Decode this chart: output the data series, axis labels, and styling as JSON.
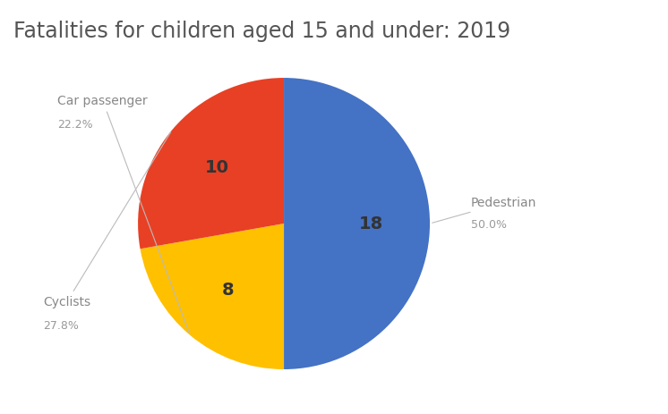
{
  "title": "Fatalities for children aged 15 and under: 2019",
  "labels": [
    "Pedestrian",
    "Car passenger",
    "Cyclists"
  ],
  "values": [
    18,
    8,
    10
  ],
  "percentages": [
    "50.0%",
    "22.2%",
    "27.8%"
  ],
  "colors": [
    "#4472C4",
    "#FFC000",
    "#E84025"
  ],
  "background_color": "#FFFFFF",
  "title_fontsize": 17,
  "label_fontsize": 10,
  "pct_fontsize": 9,
  "value_fontsize": 14,
  "startangle": 90
}
